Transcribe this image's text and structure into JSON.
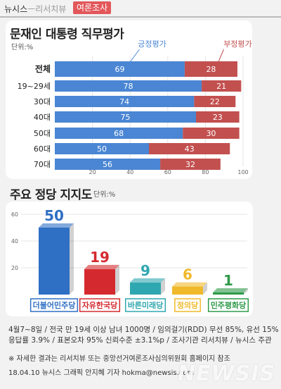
{
  "header": {
    "brand": "뉴시스",
    "sep": "ㅡ",
    "sub": "리서치뷰",
    "tag": "여론조사"
  },
  "chart_data": [
    {
      "type": "bar",
      "stacked": true,
      "orientation": "horizontal",
      "title": "문재인 대통령 직무평가",
      "unit": "단위:%",
      "categories": [
        "전체",
        "19~29세",
        "30대",
        "40대",
        "50대",
        "60대",
        "70대"
      ],
      "series": [
        {
          "name": "긍정평가",
          "values": [
            69,
            78,
            74,
            75,
            68,
            50,
            56
          ],
          "color": "#4a86d3"
        },
        {
          "name": "부정평가",
          "values": [
            28,
            21,
            22,
            23,
            30,
            43,
            32
          ],
          "color": "#c2504f"
        }
      ],
      "xticks": [
        20,
        40,
        60,
        80,
        100
      ],
      "xlim": [
        0,
        100
      ]
    },
    {
      "type": "bar",
      "title": "주요 정당 지지도",
      "unit": "단위:%",
      "categories": [
        "더불어민주당",
        "자유한국당",
        "바른미래당",
        "정의당",
        "민주평화당"
      ],
      "values": [
        50,
        19,
        9,
        6,
        1
      ],
      "colors": [
        "#2f6fc4",
        "#d42a2f",
        "#2fa7b0",
        "#f0b92a",
        "#2f9a4a"
      ],
      "yticks": [
        20,
        40,
        60
      ],
      "ylim": [
        0,
        60
      ]
    }
  ],
  "footer": {
    "line1": "4월7~8일 / 전국 만 19세 이상 남녀 1000명 / 임의걸기(RDD) 무선 85%, 유선 15%",
    "line2": "응답률 3.9% / 표본오차 95% 신뢰수준 ±3.1%p / 조사기관 리서치뷰 / 뉴시스 주관",
    "note": "※ 자세한 결과는 리서치뷰 또는 중앙선거여론조사심의위원회 홈페이지 참조",
    "credit": "18.04.10 뉴시스 그래픽 안지혜 기자 hokma@newsis.com"
  },
  "watermark": "NEWSIS"
}
